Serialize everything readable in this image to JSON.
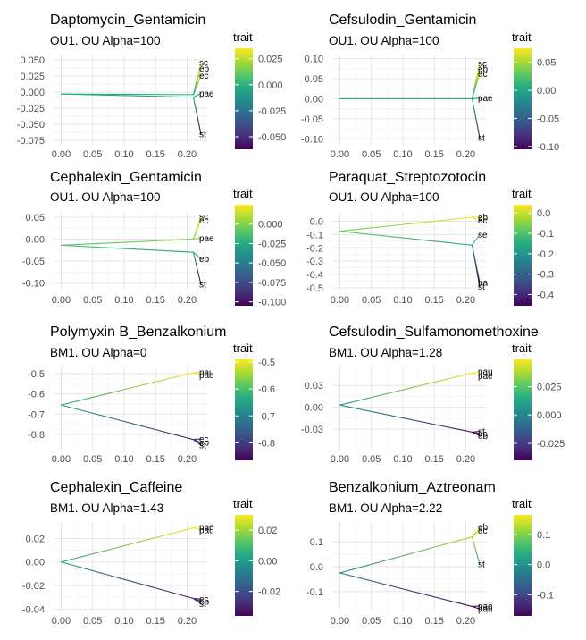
{
  "legend_title": "trait",
  "chart_data": [
    {
      "type": "phylogram",
      "title": "Daptomycin_Gentamicin",
      "subtitle": "OU1. OU Alpha=100",
      "x_ticks": [
        "0.00",
        "0.05",
        "0.10",
        "0.15",
        "0.20"
      ],
      "xlim": [
        -0.012,
        0.232
      ],
      "y_ticks": [
        0.05,
        0.025,
        0.0,
        -0.025,
        -0.05,
        -0.075
      ],
      "y_tick_labels": [
        "0.050",
        "0.025",
        "0.000",
        "-0.025",
        "-0.050",
        "-0.075"
      ],
      "ylim": [
        -0.082,
        0.057
      ],
      "colorbar_ticks": [
        0.025,
        0.0,
        -0.025,
        -0.05
      ],
      "colorbar_tick_labels": [
        "0.025",
        "0.000",
        "-0.025",
        "-0.050"
      ],
      "colorbar_range": [
        -0.062,
        0.035
      ],
      "root": -0.003,
      "branches": [
        {
          "x0": 0.0,
          "y0": -0.003,
          "x1": 0.21,
          "y1": -0.004
        },
        {
          "x0": 0.0,
          "y0": -0.003,
          "x1": 0.21,
          "y1": -0.008
        },
        {
          "x0": 0.21,
          "y0": -0.004,
          "x1": 0.222,
          "y1": 0.046
        },
        {
          "x0": 0.21,
          "y0": -0.004,
          "x1": 0.222,
          "y1": 0.037
        },
        {
          "x0": 0.21,
          "y0": -0.004,
          "x1": 0.222,
          "y1": 0.026
        },
        {
          "x0": 0.21,
          "y0": -0.008,
          "x1": 0.222,
          "y1": -0.002
        },
        {
          "x0": 0.21,
          "y0": -0.008,
          "x1": 0.222,
          "y1": -0.065
        }
      ],
      "tips": [
        {
          "label": "sc",
          "y": 0.046
        },
        {
          "label": "eb",
          "y": 0.037
        },
        {
          "label": "ec",
          "y": 0.026
        },
        {
          "label": "pae",
          "y": -0.002
        },
        {
          "label": "st",
          "y": -0.065
        }
      ]
    },
    {
      "type": "phylogram",
      "title": "Cefsulodin_Gentamicin",
      "subtitle": "OU1. OU Alpha=100",
      "x_ticks": [
        "0.00",
        "0.05",
        "0.10",
        "0.15",
        "0.20"
      ],
      "xlim": [
        -0.012,
        0.232
      ],
      "y_ticks": [
        0.1,
        0.05,
        0.0,
        -0.05,
        -0.1
      ],
      "y_tick_labels": [
        "0.10",
        "0.05",
        "0.00",
        "-0.05",
        "-0.10"
      ],
      "ylim": [
        -0.115,
        0.108
      ],
      "colorbar_ticks": [
        0.05,
        0.0,
        -0.05,
        -0.1
      ],
      "colorbar_tick_labels": [
        "0.05",
        "0.00",
        "-0.05",
        "-0.10"
      ],
      "colorbar_range": [
        -0.105,
        0.075
      ],
      "root": 0.0,
      "branches": [
        {
          "x0": 0.0,
          "y0": 0.0,
          "x1": 0.21,
          "y1": 0.0
        },
        {
          "x0": 0.21,
          "y0": 0.0,
          "x1": 0.222,
          "y1": 0.088
        },
        {
          "x0": 0.21,
          "y0": 0.0,
          "x1": 0.222,
          "y1": 0.075
        },
        {
          "x0": 0.21,
          "y0": 0.0,
          "x1": 0.222,
          "y1": 0.062
        },
        {
          "x0": 0.21,
          "y0": 0.0,
          "x1": 0.222,
          "y1": 0.002
        },
        {
          "x0": 0.21,
          "y0": 0.0,
          "x1": 0.222,
          "y1": -0.097
        }
      ],
      "tips": [
        {
          "label": "sc",
          "y": 0.088
        },
        {
          "label": "eb",
          "y": 0.075
        },
        {
          "label": "ec",
          "y": 0.062
        },
        {
          "label": "pae",
          "y": 0.002
        },
        {
          "label": "st",
          "y": -0.097
        }
      ]
    },
    {
      "type": "phylogram",
      "title": "Cephalexin_Gentamicin",
      "subtitle": "OU1. OU Alpha=100",
      "x_ticks": [
        "0.00",
        "0.05",
        "0.10",
        "0.15",
        "0.20"
      ],
      "xlim": [
        -0.012,
        0.232
      ],
      "y_ticks": [
        0.05,
        0.0,
        -0.05,
        -0.1
      ],
      "y_tick_labels": [
        "0.05",
        "0.00",
        "-0.05",
        "-0.10"
      ],
      "ylim": [
        -0.117,
        0.062
      ],
      "colorbar_ticks": [
        0.0,
        -0.025,
        -0.05,
        -0.075,
        -0.1
      ],
      "colorbar_tick_labels": [
        "0.000",
        "-0.025",
        "-0.050",
        "-0.075",
        "-0.100"
      ],
      "colorbar_range": [
        -0.105,
        0.025
      ],
      "root": -0.014,
      "branches": [
        {
          "x0": 0.0,
          "y0": -0.014,
          "x1": 0.21,
          "y1": 0.0
        },
        {
          "x0": 0.0,
          "y0": -0.014,
          "x1": 0.21,
          "y1": -0.03
        },
        {
          "x0": 0.21,
          "y0": 0.0,
          "x1": 0.222,
          "y1": 0.052
        },
        {
          "x0": 0.21,
          "y0": 0.0,
          "x1": 0.222,
          "y1": 0.043
        },
        {
          "x0": 0.21,
          "y0": 0.0,
          "x1": 0.222,
          "y1": 0.002
        },
        {
          "x0": 0.21,
          "y0": -0.03,
          "x1": 0.222,
          "y1": -0.045
        },
        {
          "x0": 0.21,
          "y0": -0.03,
          "x1": 0.222,
          "y1": -0.103
        }
      ],
      "tips": [
        {
          "label": "sc",
          "y": 0.052
        },
        {
          "label": "ec",
          "y": 0.043
        },
        {
          "label": "pae",
          "y": 0.002
        },
        {
          "label": "eb",
          "y": -0.045
        },
        {
          "label": "st",
          "y": -0.103
        }
      ]
    },
    {
      "type": "phylogram",
      "title": "Paraquat_Streptozotocin",
      "subtitle": "OU1. OU Alpha=100",
      "x_ticks": [
        "0.00",
        "0.05",
        "0.10",
        "0.15",
        "0.20"
      ],
      "xlim": [
        -0.012,
        0.232
      ],
      "y_ticks": [
        0.0,
        -0.1,
        -0.2,
        -0.3,
        -0.4,
        -0.5
      ],
      "y_tick_labels": [
        "0.0",
        "-0.1",
        "-0.2",
        "-0.3",
        "-0.4",
        "-0.5"
      ],
      "ylim": [
        -0.52,
        0.07
      ],
      "colorbar_ticks": [
        0.0,
        -0.1,
        -0.2,
        -0.3,
        -0.4
      ],
      "colorbar_tick_labels": [
        "0.0",
        "-0.1",
        "-0.2",
        "-0.3",
        "-0.4"
      ],
      "colorbar_range": [
        -0.455,
        0.04
      ],
      "root": -0.075,
      "branches": [
        {
          "x0": 0.0,
          "y0": -0.075,
          "x1": 0.21,
          "y1": 0.03
        },
        {
          "x0": 0.0,
          "y0": -0.075,
          "x1": 0.21,
          "y1": -0.18
        },
        {
          "x0": 0.21,
          "y0": 0.03,
          "x1": 0.222,
          "y1": 0.03
        },
        {
          "x0": 0.21,
          "y0": 0.03,
          "x1": 0.222,
          "y1": 0.005
        },
        {
          "x0": 0.21,
          "y0": -0.18,
          "x1": 0.222,
          "y1": -0.1
        },
        {
          "x0": 0.21,
          "y0": -0.18,
          "x1": 0.222,
          "y1": -0.46
        },
        {
          "x0": 0.21,
          "y0": -0.18,
          "x1": 0.222,
          "y1": -0.49
        }
      ],
      "tips": [
        {
          "label": "eb",
          "y": 0.03
        },
        {
          "label": "ec",
          "y": 0.005
        },
        {
          "label": "se",
          "y": -0.1
        },
        {
          "label": "pa",
          "y": -0.46
        },
        {
          "label": "st",
          "y": -0.49
        }
      ]
    },
    {
      "type": "phylogram",
      "title": "Polymyxin B_Benzalkonium",
      "subtitle": "BM1. OU Alpha=0",
      "x_ticks": [
        "0.00",
        "0.05",
        "0.10",
        "0.15",
        "0.20"
      ],
      "xlim": [
        -0.012,
        0.232
      ],
      "y_ticks": [
        -0.5,
        -0.6,
        -0.7,
        -0.8
      ],
      "y_tick_labels": [
        "-0.5",
        "-0.6",
        "-0.7",
        "-0.8"
      ],
      "ylim": [
        -0.875,
        -0.465
      ],
      "colorbar_ticks": [
        -0.5,
        -0.6,
        -0.7,
        -0.8
      ],
      "colorbar_tick_labels": [
        "-0.5",
        "-0.6",
        "-0.7",
        "-0.8"
      ],
      "colorbar_range": [
        -0.865,
        -0.49
      ],
      "root": -0.655,
      "branches": [
        {
          "x0": 0.0,
          "y0": -0.655,
          "x1": 0.21,
          "y1": -0.495
        },
        {
          "x0": 0.0,
          "y0": -0.655,
          "x1": 0.21,
          "y1": -0.825
        },
        {
          "x0": 0.21,
          "y0": -0.495,
          "x1": 0.222,
          "y1": -0.493
        },
        {
          "x0": 0.21,
          "y0": -0.495,
          "x1": 0.222,
          "y1": -0.507
        },
        {
          "x0": 0.21,
          "y0": -0.825,
          "x1": 0.222,
          "y1": -0.822
        },
        {
          "x0": 0.21,
          "y0": -0.825,
          "x1": 0.222,
          "y1": -0.84
        },
        {
          "x0": 0.21,
          "y0": -0.825,
          "x1": 0.222,
          "y1": -0.853
        }
      ],
      "tips": [
        {
          "label": "pau",
          "y": -0.493
        },
        {
          "label": "pae",
          "y": -0.507
        },
        {
          "label": "ec",
          "y": -0.822
        },
        {
          "label": "eb",
          "y": -0.84
        },
        {
          "label": "st",
          "y": -0.853
        }
      ]
    },
    {
      "type": "phylogram",
      "title": "Cefsulodin_Sulfamonomethoxine",
      "subtitle": "BM1. OU Alpha=1.28",
      "x_ticks": [
        "0.00",
        "0.05",
        "0.10",
        "0.15",
        "0.20"
      ],
      "xlim": [
        -0.012,
        0.232
      ],
      "y_ticks": [
        0.03,
        0.0,
        -0.03
      ],
      "y_tick_labels": [
        "0.03",
        "0.00",
        "-0.03"
      ],
      "ylim": [
        -0.058,
        0.056
      ],
      "colorbar_ticks": [
        0.025,
        0.0,
        -0.025
      ],
      "colorbar_tick_labels": [
        "0.025",
        "0.000",
        "-0.025"
      ],
      "colorbar_range": [
        -0.04,
        0.049
      ],
      "root": 0.003,
      "branches": [
        {
          "x0": 0.0,
          "y0": 0.003,
          "x1": 0.21,
          "y1": 0.047
        },
        {
          "x0": 0.0,
          "y0": 0.003,
          "x1": 0.21,
          "y1": -0.034
        },
        {
          "x0": 0.21,
          "y0": 0.047,
          "x1": 0.222,
          "y1": 0.049
        },
        {
          "x0": 0.21,
          "y0": 0.047,
          "x1": 0.222,
          "y1": 0.043
        },
        {
          "x0": 0.21,
          "y0": -0.034,
          "x1": 0.222,
          "y1": -0.033
        },
        {
          "x0": 0.21,
          "y0": -0.034,
          "x1": 0.222,
          "y1": -0.036
        },
        {
          "x0": 0.21,
          "y0": -0.034,
          "x1": 0.222,
          "y1": -0.039
        }
      ],
      "tips": [
        {
          "label": "pau",
          "y": 0.049
        },
        {
          "label": "pae",
          "y": 0.043
        },
        {
          "label": "st",
          "y": -0.033
        },
        {
          "label": "ec",
          "y": -0.036
        },
        {
          "label": "eb",
          "y": -0.039
        }
      ]
    },
    {
      "type": "phylogram",
      "title": "Cephalexin_Caffeine",
      "subtitle": "BM1. OU Alpha=1.43",
      "x_ticks": [
        "0.00",
        "0.05",
        "0.10",
        "0.15",
        "0.20"
      ],
      "xlim": [
        -0.012,
        0.232
      ],
      "y_ticks": [
        0.02,
        0.0,
        -0.02,
        -0.04
      ],
      "y_tick_labels": [
        "0.02",
        "0.00",
        "-0.02",
        "-0.04"
      ],
      "ylim": [
        -0.042,
        0.034
      ],
      "colorbar_ticks": [
        0.02,
        0.0,
        -0.02
      ],
      "colorbar_tick_labels": [
        "0.02",
        "0.00",
        "-0.02"
      ],
      "colorbar_range": [
        -0.036,
        0.03
      ],
      "root": 0.0,
      "branches": [
        {
          "x0": 0.0,
          "y0": 0.0,
          "x1": 0.21,
          "y1": 0.029
        },
        {
          "x0": 0.0,
          "y0": 0.0,
          "x1": 0.21,
          "y1": -0.031
        },
        {
          "x0": 0.21,
          "y0": 0.029,
          "x1": 0.222,
          "y1": 0.03
        },
        {
          "x0": 0.21,
          "y0": 0.029,
          "x1": 0.222,
          "y1": 0.027
        },
        {
          "x0": 0.21,
          "y0": -0.031,
          "x1": 0.222,
          "y1": -0.0315
        },
        {
          "x0": 0.21,
          "y0": -0.031,
          "x1": 0.222,
          "y1": -0.0335
        },
        {
          "x0": 0.21,
          "y0": -0.031,
          "x1": 0.222,
          "y1": -0.0355
        }
      ],
      "tips": [
        {
          "label": "pae",
          "y": 0.03
        },
        {
          "label": "pau",
          "y": 0.027
        },
        {
          "label": "ec",
          "y": -0.0315
        },
        {
          "label": "eb",
          "y": -0.0335
        },
        {
          "label": "st",
          "y": -0.0355
        }
      ]
    },
    {
      "type": "phylogram",
      "title": "Benzalkonium_Aztreonam",
      "subtitle": "BM1. OU Alpha=2.22",
      "x_ticks": [
        "0.00",
        "0.05",
        "0.10",
        "0.15",
        "0.20"
      ],
      "xlim": [
        -0.012,
        0.232
      ],
      "y_ticks": [
        0.1,
        0.0,
        -0.1
      ],
      "y_tick_labels": [
        "0.1",
        "0.0",
        "-0.1"
      ],
      "ylim": [
        -0.18,
        0.18
      ],
      "colorbar_ticks": [
        0.1,
        0.0,
        -0.1
      ],
      "colorbar_tick_labels": [
        "0.1",
        "0.0",
        "-0.1"
      ],
      "colorbar_range": [
        -0.17,
        0.165
      ],
      "root": -0.025,
      "branches": [
        {
          "x0": 0.0,
          "y0": -0.025,
          "x1": 0.21,
          "y1": 0.12
        },
        {
          "x0": 0.0,
          "y0": -0.025,
          "x1": 0.21,
          "y1": -0.16
        },
        {
          "x0": 0.21,
          "y0": 0.12,
          "x1": 0.222,
          "y1": 0.16
        },
        {
          "x0": 0.21,
          "y0": 0.12,
          "x1": 0.222,
          "y1": 0.145
        },
        {
          "x0": 0.21,
          "y0": 0.12,
          "x1": 0.222,
          "y1": 0.01
        },
        {
          "x0": 0.21,
          "y0": -0.16,
          "x1": 0.222,
          "y1": -0.158
        },
        {
          "x0": 0.21,
          "y0": -0.16,
          "x1": 0.222,
          "y1": -0.17
        }
      ],
      "tips": [
        {
          "label": "eb",
          "y": 0.16
        },
        {
          "label": "ec",
          "y": 0.145
        },
        {
          "label": "st",
          "y": 0.01
        },
        {
          "label": "pae",
          "y": -0.158
        },
        {
          "label": "pau",
          "y": -0.17
        }
      ]
    }
  ]
}
